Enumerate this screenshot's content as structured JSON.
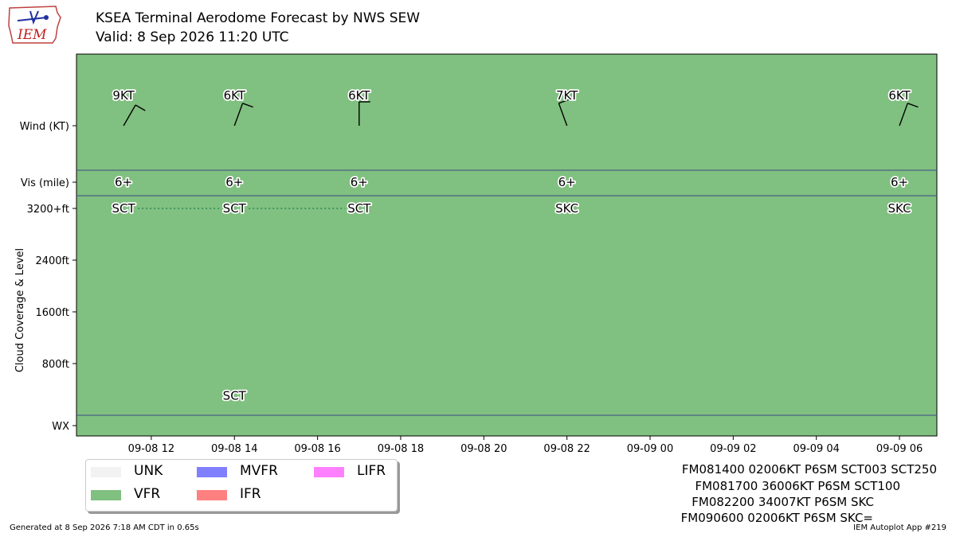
{
  "header": {
    "title": "KSEA Terminal Aerodome Forecast by NWS SEW",
    "valid": "Valid: 8 Sep 2026 11:20 UTC",
    "logo_text": "IEM"
  },
  "chart_data": {
    "type": "timeline",
    "x_ticks": [
      "09-08 12",
      "09-08 14",
      "09-08 16",
      "09-08 18",
      "09-08 20",
      "09-08 22",
      "09-09 00",
      "09-09 02",
      "09-09 04",
      "09-09 06"
    ],
    "x_tick_hours": [
      12,
      14,
      16,
      18,
      20,
      22,
      24,
      26,
      28,
      30
    ],
    "x_range_hours": [
      10.2,
      30.9
    ],
    "row_labels": {
      "wind": "Wind (KT)",
      "vis": "Vis (mile)",
      "cloud_axis": "Cloud Coverage & Level",
      "wx": "WX"
    },
    "cloud_ticks": [
      "3200+ft",
      "2400ft",
      "1600ft",
      "800ft"
    ],
    "cloud_tick_values": [
      3200,
      2400,
      1600,
      800
    ],
    "forecasts": [
      {
        "hour": 11.333,
        "wind_label": "9KT",
        "wind_dir": 30,
        "wind_kt": 9,
        "vis_label": "6+",
        "clouds": [
          {
            "label": "SCT",
            "level": 3200
          }
        ]
      },
      {
        "hour": 14,
        "wind_label": "6KT",
        "wind_dir": 20,
        "wind_kt": 6,
        "vis_label": "6+",
        "clouds": [
          {
            "label": "SCT",
            "level": 300
          },
          {
            "label": "SCT",
            "level": 3200
          }
        ]
      },
      {
        "hour": 17,
        "wind_label": "6KT",
        "wind_dir": 360,
        "wind_kt": 6,
        "vis_label": "6+",
        "clouds": [
          {
            "label": "SCT",
            "level": 3200
          }
        ]
      },
      {
        "hour": 22,
        "wind_label": "7KT",
        "wind_dir": 340,
        "wind_kt": 7,
        "vis_label": "6+",
        "clouds": [
          {
            "label": "SKC",
            "level": 3200
          }
        ]
      },
      {
        "hour": 30,
        "wind_label": "6KT",
        "wind_dir": 20,
        "wind_kt": 6,
        "vis_label": "6+",
        "clouds": [
          {
            "label": "SKC",
            "level": 3200
          }
        ]
      }
    ],
    "category": "VFR",
    "colors": {
      "VFR": "#80c080",
      "UNK": "#f2f2f2",
      "MVFR": "#8080ff",
      "IFR": "#ff8080",
      "LIFR": "#ff80ff",
      "cloud_line": "#2e8b57",
      "separator": "#3b4a8a"
    }
  },
  "legend": {
    "items": [
      {
        "label": "UNK",
        "color": "#f2f2f2"
      },
      {
        "label": "VFR",
        "color": "#80c080"
      },
      {
        "label": "MVFR",
        "color": "#8080ff"
      },
      {
        "label": "IFR",
        "color": "#ff8080"
      },
      {
        "label": "LIFR",
        "color": "#ff80ff"
      }
    ]
  },
  "raw_taf": [
    "FM081400 02006KT P6SM SCT003 SCT250",
    "FM081700 36006KT P6SM SCT100",
    "FM082200 34007KT P6SM SKC",
    "FM090600 02006KT P6SM SKC="
  ],
  "footer": {
    "generated": "Generated at 8 Sep 2026 7:18 AM CDT in 0.65s",
    "app": "IEM Autoplot App #219"
  }
}
